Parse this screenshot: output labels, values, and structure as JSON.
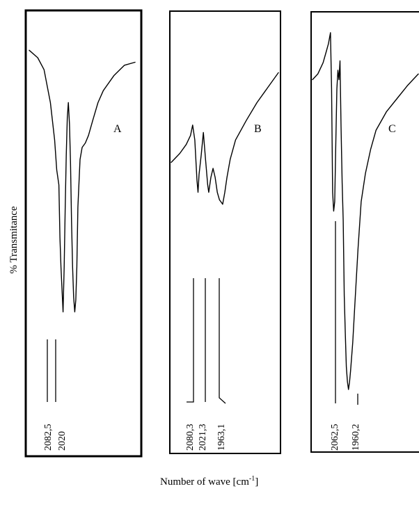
{
  "chart_data": {
    "type": "line",
    "ylabel": "% Transmitance",
    "xlabel_text": "Number of wave [cm",
    "xlabel_unit_sup": "-1",
    "xlabel_suffix": "]",
    "panels": [
      {
        "label": "A",
        "peaks": [
          "2082,5",
          "2020"
        ],
        "trace": [
          [
            0,
            85
          ],
          [
            8,
            80
          ],
          [
            14,
            72
          ],
          [
            20,
            50
          ],
          [
            24,
            25
          ],
          [
            26,
            5
          ],
          [
            28,
            -5
          ],
          [
            29,
            -40
          ],
          [
            30,
            -60
          ],
          [
            31,
            -75
          ],
          [
            32,
            -90
          ],
          [
            33,
            -60
          ],
          [
            34,
            -20
          ],
          [
            35,
            15
          ],
          [
            36,
            40
          ],
          [
            37,
            50
          ],
          [
            38,
            36
          ],
          [
            39,
            10
          ],
          [
            40,
            -30
          ],
          [
            41,
            -60
          ],
          [
            42,
            -80
          ],
          [
            43,
            -90
          ],
          [
            44,
            -82
          ],
          [
            45,
            -60
          ],
          [
            46,
            -20
          ],
          [
            48,
            12
          ],
          [
            50,
            20
          ],
          [
            53,
            23
          ],
          [
            56,
            28
          ],
          [
            60,
            38
          ],
          [
            65,
            50
          ],
          [
            70,
            58
          ],
          [
            80,
            68
          ],
          [
            90,
            75
          ],
          [
            100,
            77
          ]
        ]
      },
      {
        "label": "B",
        "peaks": [
          "2080,3",
          "2021,3",
          "1963,1"
        ],
        "trace": [
          [
            0,
            10
          ],
          [
            8,
            16
          ],
          [
            14,
            22
          ],
          [
            18,
            28
          ],
          [
            20,
            35
          ],
          [
            22,
            25
          ],
          [
            24,
            -2
          ],
          [
            25,
            -10
          ],
          [
            26,
            2
          ],
          [
            28,
            15
          ],
          [
            30,
            30
          ],
          [
            32,
            12
          ],
          [
            34,
            -5
          ],
          [
            35,
            -10
          ],
          [
            37,
            0
          ],
          [
            39,
            6
          ],
          [
            41,
            0
          ],
          [
            43,
            -10
          ],
          [
            45,
            -15
          ],
          [
            47,
            -17
          ],
          [
            48,
            -18
          ],
          [
            50,
            -10
          ],
          [
            52,
            0
          ],
          [
            55,
            12
          ],
          [
            60,
            25
          ],
          [
            70,
            38
          ],
          [
            80,
            50
          ],
          [
            90,
            60
          ],
          [
            100,
            70
          ]
        ]
      },
      {
        "label": "C",
        "peaks": [
          "2062,5",
          "1960,2"
        ],
        "trace": [
          [
            0,
            65
          ],
          [
            5,
            68
          ],
          [
            10,
            74
          ],
          [
            13,
            80
          ],
          [
            15,
            84
          ],
          [
            17,
            90
          ],
          [
            18,
            60
          ],
          [
            19,
            5
          ],
          [
            20,
            -5
          ],
          [
            21,
            0
          ],
          [
            22,
            30
          ],
          [
            23,
            60
          ],
          [
            24,
            70
          ],
          [
            25,
            65
          ],
          [
            26,
            75
          ],
          [
            27,
            40
          ],
          [
            28,
            10
          ],
          [
            29,
            -10
          ],
          [
            30,
            -50
          ],
          [
            31,
            -70
          ],
          [
            32,
            -88
          ],
          [
            33,
            -96
          ],
          [
            34,
            -100
          ],
          [
            35,
            -96
          ],
          [
            36,
            -90
          ],
          [
            38,
            -75
          ],
          [
            40,
            -55
          ],
          [
            43,
            -25
          ],
          [
            46,
            0
          ],
          [
            50,
            15
          ],
          [
            55,
            28
          ],
          [
            60,
            38
          ],
          [
            70,
            48
          ],
          [
            80,
            55
          ],
          [
            90,
            62
          ],
          [
            100,
            68
          ]
        ]
      }
    ]
  }
}
